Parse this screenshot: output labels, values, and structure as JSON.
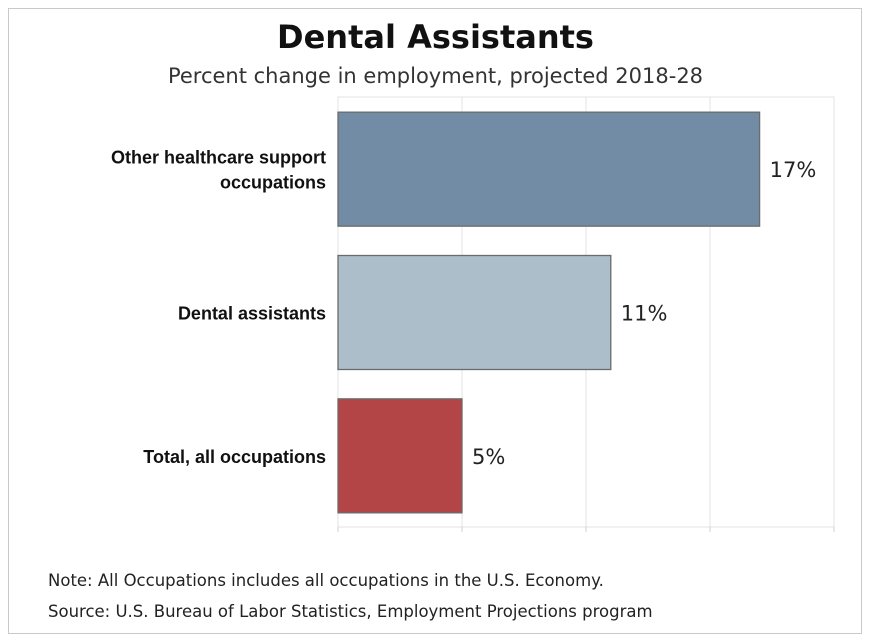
{
  "chart_data": {
    "type": "bar",
    "orientation": "horizontal",
    "title": "Dental Assistants",
    "subtitle": "Percent change in employment, projected 2018-28",
    "categories": [
      "Other healthcare support occupations",
      "Dental assistants",
      "Total, all occupations"
    ],
    "category_lines": [
      [
        "Other healthcare support",
        "occupations"
      ],
      [
        "Dental assistants"
      ],
      [
        "Total, all occupations"
      ]
    ],
    "values": [
      17,
      11,
      5
    ],
    "data_labels": [
      "17%",
      "11%",
      "5%"
    ],
    "colors": [
      "#718ca4",
      "#adbecb",
      "#b34547"
    ],
    "xlim": [
      0,
      20
    ],
    "grid": true
  },
  "footer": {
    "note": "Note: All Occupations includes all occupations in the U.S. Economy.",
    "source": "Source: U.S. Bureau of Labor Statistics, Employment Projections program"
  }
}
